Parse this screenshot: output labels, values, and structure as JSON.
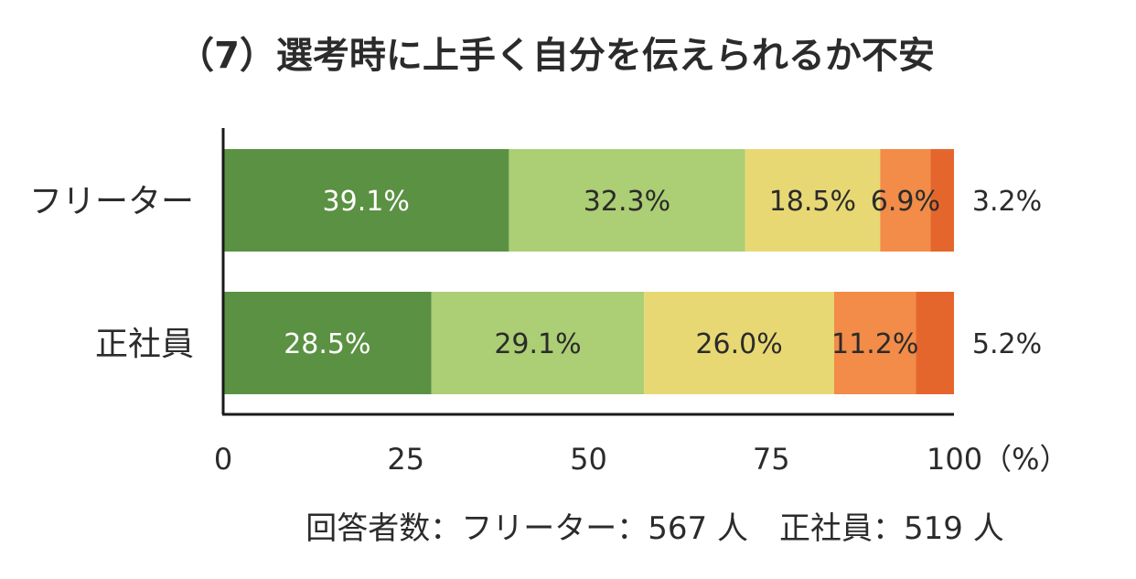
{
  "chart_data": {
    "type": "bar",
    "orientation": "horizontal",
    "stacked": true,
    "title": "（7）選考時に上手く自分を伝えられるか不安",
    "categories": [
      "フリーター",
      "正社員"
    ],
    "series": [
      {
        "values": [
          39.1,
          28.5
        ],
        "labels": [
          "39.1%",
          "28.5%"
        ],
        "color": "#5b9142",
        "label_color": "#ffffff"
      },
      {
        "values": [
          32.3,
          29.1
        ],
        "labels": [
          "32.3%",
          "29.1%"
        ],
        "color": "#acce74",
        "label_color": "#2b2b2b"
      },
      {
        "values": [
          18.5,
          26.0
        ],
        "labels": [
          "18.5%",
          "26.0%"
        ],
        "color": "#e8d874",
        "label_color": "#2b2b2b"
      },
      {
        "values": [
          6.9,
          11.2
        ],
        "labels": [
          "6.9%",
          "11.2%"
        ],
        "color": "#f28c48",
        "label_color": "#2b2b2b"
      },
      {
        "values": [
          3.2,
          5.2
        ],
        "labels": [
          "3.2%",
          "5.2%"
        ],
        "color": "#e5662c",
        "label_color": "#2b2b2b"
      }
    ],
    "xlim": [
      0,
      100
    ],
    "xticks": [
      0,
      25,
      50,
      75,
      100
    ],
    "xtick_labels": [
      "0",
      "25",
      "50",
      "75",
      "100（%）"
    ],
    "footnote": "回答者数：フリーター：567 人　正社員：519 人"
  }
}
